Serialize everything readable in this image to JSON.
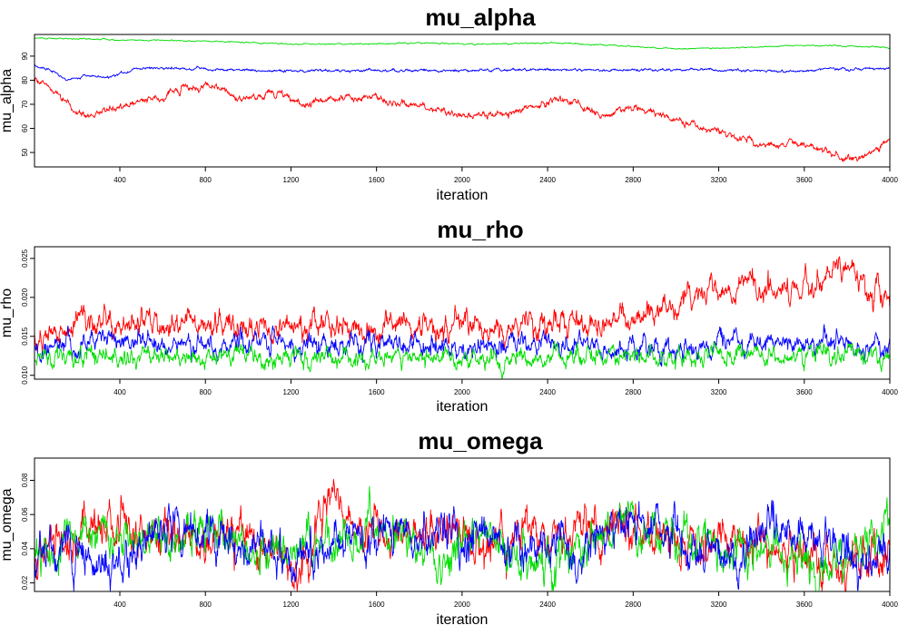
{
  "chart_data": [
    {
      "type": "line",
      "title": "mu_alpha",
      "xlabel": "iteration",
      "ylabel": "mu_alpha",
      "xlim": [
        1,
        4000
      ],
      "ylim": [
        44,
        99
      ],
      "xticks": [
        400,
        800,
        1200,
        1600,
        2000,
        2400,
        2800,
        3200,
        3600,
        4000
      ],
      "yticks": [
        50,
        60,
        70,
        80,
        90
      ],
      "grid": false,
      "series": [
        {
          "color": "#00dd00",
          "noise": 0.15,
          "points": [
            [
              1,
              97.5
            ],
            [
              300,
              97
            ],
            [
              600,
              96.5
            ],
            [
              900,
              96
            ],
            [
              1200,
              95
            ],
            [
              1500,
              95
            ],
            [
              1800,
              95.5
            ],
            [
              2100,
              95
            ],
            [
              2400,
              95.5
            ],
            [
              2700,
              94.5
            ],
            [
              3000,
              93
            ],
            [
              3300,
              93.5
            ],
            [
              3600,
              94.5
            ],
            [
              3900,
              94
            ],
            [
              4000,
              93.5
            ]
          ]
        },
        {
          "color": "#0000ff",
          "noise": 0.3,
          "points": [
            [
              1,
              86
            ],
            [
              100,
              83
            ],
            [
              150,
              80
            ],
            [
              250,
              82
            ],
            [
              350,
              81
            ],
            [
              450,
              84
            ],
            [
              500,
              85
            ],
            [
              800,
              84.5
            ],
            [
              1200,
              84
            ],
            [
              1600,
              84
            ],
            [
              2000,
              84
            ],
            [
              2400,
              84.5
            ],
            [
              2800,
              84
            ],
            [
              3200,
              84.5
            ],
            [
              3500,
              83.5
            ],
            [
              3700,
              84.5
            ],
            [
              4000,
              85
            ]
          ]
        },
        {
          "color": "#ff0000",
          "noise": 0.8,
          "points": [
            [
              1,
              80
            ],
            [
              100,
              76
            ],
            [
              200,
              66
            ],
            [
              300,
              67
            ],
            [
              450,
              70
            ],
            [
              600,
              73
            ],
            [
              700,
              76
            ],
            [
              850,
              78
            ],
            [
              950,
              72
            ],
            [
              1050,
              73
            ],
            [
              1150,
              75
            ],
            [
              1250,
              70
            ],
            [
              1400,
              72
            ],
            [
              1600,
              73
            ],
            [
              1700,
              70
            ],
            [
              1800,
              69
            ],
            [
              1900,
              68
            ],
            [
              2000,
              65
            ],
            [
              2200,
              66
            ],
            [
              2400,
              71
            ],
            [
              2500,
              72
            ],
            [
              2650,
              65
            ],
            [
              2800,
              69
            ],
            [
              2900,
              66
            ],
            [
              3100,
              61
            ],
            [
              3300,
              56
            ],
            [
              3450,
              52
            ],
            [
              3550,
              54
            ],
            [
              3650,
              52
            ],
            [
              3800,
              47
            ],
            [
              3900,
              49
            ],
            [
              4000,
              56
            ]
          ]
        }
      ]
    },
    {
      "type": "line",
      "title": "mu_rho",
      "xlabel": "iteration",
      "ylabel": "mu_rho",
      "xlim": [
        1,
        4000
      ],
      "ylim": [
        0.0095,
        0.0265
      ],
      "xticks": [
        400,
        800,
        1200,
        1600,
        2000,
        2400,
        2800,
        3200,
        3600,
        4000
      ],
      "yticks": [
        0.01,
        0.015,
        0.02,
        0.025
      ],
      "ytick_labels": [
        "0.010",
        "0.015",
        "0.020",
        "0.025"
      ],
      "grid": false,
      "series": [
        {
          "color": "#ff0000",
          "noise": 0.0009,
          "points": [
            [
              1,
              0.0145
            ],
            [
              200,
              0.017
            ],
            [
              600,
              0.0165
            ],
            [
              1000,
              0.0162
            ],
            [
              1400,
              0.016
            ],
            [
              1800,
              0.0165
            ],
            [
              2200,
              0.0163
            ],
            [
              2600,
              0.0168
            ],
            [
              2900,
              0.0175
            ],
            [
              3100,
              0.0205
            ],
            [
              3300,
              0.0215
            ],
            [
              3500,
              0.0205
            ],
            [
              3600,
              0.0215
            ],
            [
              3800,
              0.024
            ],
            [
              3900,
              0.021
            ],
            [
              4000,
              0.0195
            ]
          ]
        },
        {
          "color": "#0000ff",
          "noise": 0.0008,
          "points": [
            [
              1,
              0.013
            ],
            [
              300,
              0.0145
            ],
            [
              800,
              0.014
            ],
            [
              1500,
              0.0138
            ],
            [
              2000,
              0.0138
            ],
            [
              2600,
              0.014
            ],
            [
              3000,
              0.0135
            ],
            [
              3400,
              0.0143
            ],
            [
              3800,
              0.014
            ],
            [
              4000,
              0.0138
            ]
          ]
        },
        {
          "color": "#00dd00",
          "noise": 0.0007,
          "points": [
            [
              1,
              0.0125
            ],
            [
              1000,
              0.0122
            ],
            [
              2000,
              0.0122
            ],
            [
              3000,
              0.0125
            ],
            [
              4000,
              0.0125
            ]
          ]
        }
      ]
    },
    {
      "type": "line",
      "title": "mu_omega",
      "xlabel": "iteration",
      "ylabel": "mu_omega",
      "xlim": [
        1,
        4000
      ],
      "ylim": [
        0.015,
        0.093
      ],
      "xticks": [
        400,
        800,
        1200,
        1600,
        2000,
        2400,
        2800,
        3200,
        3600,
        4000
      ],
      "yticks": [
        0.02,
        0.04,
        0.06,
        0.08
      ],
      "ytick_labels": [
        "0.02",
        "0.04",
        "0.06",
        "0.08"
      ],
      "grid": false,
      "series": [
        {
          "color": "#ff0000",
          "noise": 0.007,
          "points": [
            [
              1,
              0.04
            ],
            [
              300,
              0.048
            ],
            [
              700,
              0.05
            ],
            [
              1000,
              0.047
            ],
            [
              1250,
              0.03
            ],
            [
              1380,
              0.075
            ],
            [
              1500,
              0.05
            ],
            [
              1800,
              0.05
            ],
            [
              2100,
              0.045
            ],
            [
              2300,
              0.052
            ],
            [
              2500,
              0.045
            ],
            [
              2750,
              0.055
            ],
            [
              3000,
              0.045
            ],
            [
              3300,
              0.045
            ],
            [
              3600,
              0.04
            ],
            [
              3800,
              0.03
            ],
            [
              4000,
              0.04
            ]
          ]
        },
        {
          "color": "#00dd00",
          "noise": 0.007,
          "points": [
            [
              1,
              0.035
            ],
            [
              200,
              0.045
            ],
            [
              500,
              0.05
            ],
            [
              800,
              0.048
            ],
            [
              1100,
              0.04
            ],
            [
              1400,
              0.042
            ],
            [
              1700,
              0.05
            ],
            [
              1900,
              0.032
            ],
            [
              2100,
              0.05
            ],
            [
              2350,
              0.028
            ],
            [
              2550,
              0.04
            ],
            [
              2750,
              0.05
            ],
            [
              2950,
              0.045
            ],
            [
              3200,
              0.04
            ],
            [
              3500,
              0.038
            ],
            [
              3700,
              0.025
            ],
            [
              4000,
              0.055
            ]
          ]
        },
        {
          "color": "#0000ff",
          "noise": 0.007,
          "points": [
            [
              1,
              0.04
            ],
            [
              200,
              0.035
            ],
            [
              450,
              0.03
            ],
            [
              600,
              0.055
            ],
            [
              900,
              0.045
            ],
            [
              1200,
              0.035
            ],
            [
              1500,
              0.045
            ],
            [
              1900,
              0.05
            ],
            [
              2200,
              0.045
            ],
            [
              2400,
              0.038
            ],
            [
              2600,
              0.045
            ],
            [
              2850,
              0.055
            ],
            [
              3050,
              0.045
            ],
            [
              3250,
              0.035
            ],
            [
              3500,
              0.055
            ],
            [
              3600,
              0.05
            ],
            [
              3750,
              0.035
            ],
            [
              3900,
              0.03
            ],
            [
              4000,
              0.045
            ]
          ]
        }
      ]
    }
  ]
}
